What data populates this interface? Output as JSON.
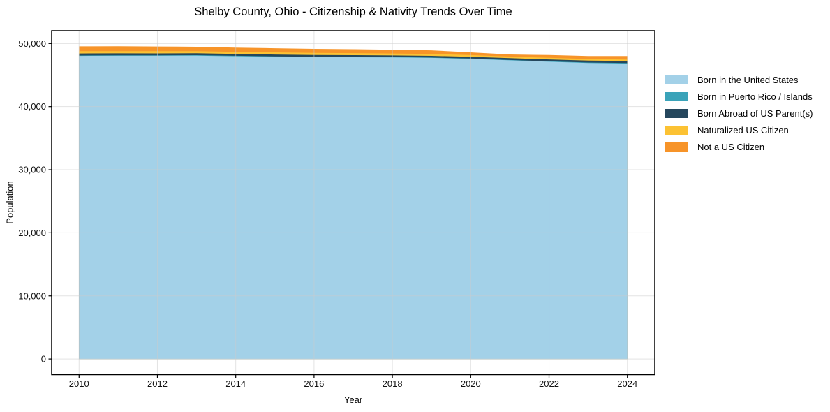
{
  "figure": {
    "title": "Shelby County, Ohio - Citizenship & Nativity Trends Over Time",
    "xlabel": "Year",
    "ylabel": "Population"
  },
  "chart_data": {
    "type": "area",
    "stacked": true,
    "title": "Shelby County, Ohio - Citizenship & Nativity Trends Over Time",
    "xlabel": "Year",
    "ylabel": "Population",
    "grid": true,
    "legend_position": "right-outside",
    "x": [
      2010,
      2011,
      2012,
      2013,
      2014,
      2015,
      2016,
      2017,
      2018,
      2019,
      2020,
      2021,
      2022,
      2023,
      2024
    ],
    "series": [
      {
        "name": "Born in the United States",
        "color": "#a3d1e8",
        "values": [
          48030,
          48060,
          48060,
          48080,
          47980,
          47900,
          47840,
          47820,
          47790,
          47720,
          47560,
          47330,
          47110,
          46920,
          46820
        ]
      },
      {
        "name": "Born in Puerto Rico / Islands",
        "color": "#3aa3b9",
        "values": [
          70,
          70,
          75,
          70,
          70,
          65,
          60,
          60,
          60,
          60,
          60,
          65,
          70,
          75,
          80
        ]
      },
      {
        "name": "Born Abroad of US Parent(s)",
        "color": "#25475d",
        "values": [
          320,
          310,
          300,
          300,
          300,
          290,
          280,
          270,
          260,
          260,
          270,
          280,
          300,
          310,
          330
        ]
      },
      {
        "name": "Naturalized US Citizen",
        "color": "#fcc233",
        "values": [
          360,
          360,
          355,
          350,
          340,
          340,
          330,
          320,
          310,
          300,
          280,
          260,
          250,
          240,
          230
        ]
      },
      {
        "name": "Not a US Citizen",
        "color": "#f79429",
        "values": [
          770,
          760,
          740,
          680,
          660,
          650,
          640,
          620,
          600,
          580,
          430,
          330,
          450,
          480,
          550
        ]
      }
    ],
    "xticks": [
      2010,
      2012,
      2014,
      2016,
      2018,
      2020,
      2022,
      2024
    ],
    "yticks": [
      0,
      10000,
      20000,
      30000,
      40000,
      50000
    ],
    "ytick_labels": [
      "0",
      "10,000",
      "20,000",
      "30,000",
      "40,000",
      "50,000"
    ],
    "xlim": [
      2009.3,
      2024.7
    ],
    "ylim": [
      -2478,
      52028
    ]
  }
}
